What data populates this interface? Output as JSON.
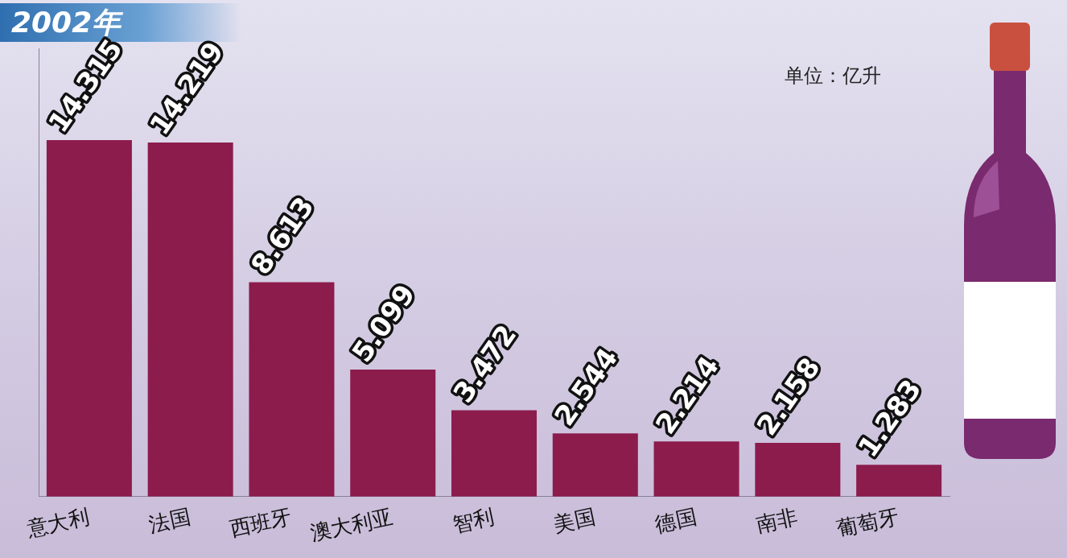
{
  "chart_data": {
    "type": "bar",
    "title": "2002年",
    "annotations": [
      "单位：亿升"
    ],
    "categories": [
      "意大利",
      "法国",
      "西班牙",
      "澳大利亚",
      "智利",
      "美国",
      "德国",
      "南非",
      "葡萄牙"
    ],
    "values": [
      14.315,
      14.219,
      8.613,
      5.099,
      3.472,
      2.544,
      2.214,
      2.158,
      1.283
    ],
    "color": "#8c1c4c",
    "ylim": [
      0,
      18
    ],
    "grid": false,
    "data_labels": true,
    "tick_labels": "x"
  }
}
